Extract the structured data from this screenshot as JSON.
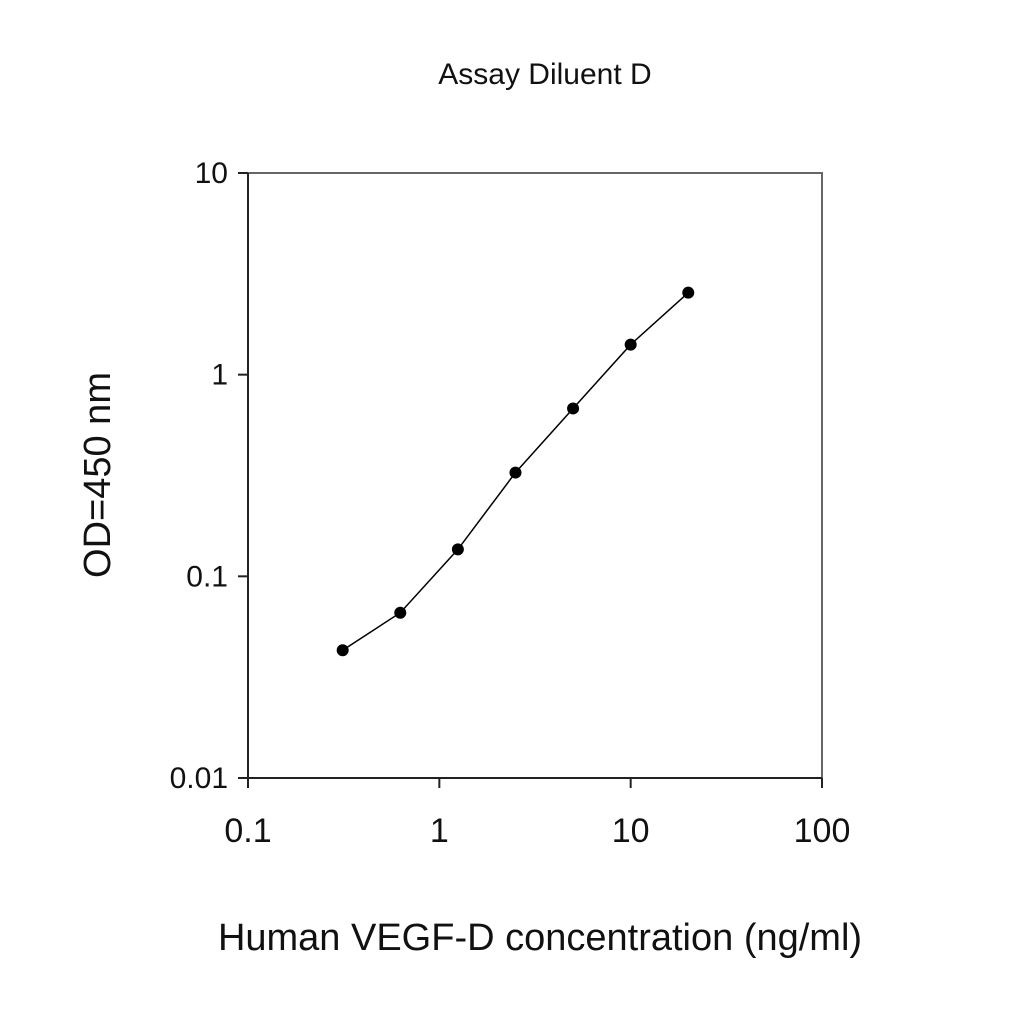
{
  "chart_data": {
    "type": "line",
    "title": "Assay Diluent D",
    "x_label": "Human VEGF-D concentration (ng/ml)",
    "y_label": "OD=450 nm",
    "x": [
      0.3125,
      0.625,
      1.25,
      2.5,
      5,
      10,
      20
    ],
    "values": [
      0.043,
      0.066,
      0.136,
      0.327,
      0.68,
      1.41,
      2.55
    ],
    "color": "#000000",
    "xlim": [
      0.1,
      100
    ],
    "xticks": [
      0.1,
      1,
      10,
      100
    ],
    "ylim": [
      0.01,
      10
    ],
    "yticks": [
      0.01,
      0.1,
      1,
      10
    ],
    "xscale": "log",
    "yscale": "log",
    "markers": true
  }
}
